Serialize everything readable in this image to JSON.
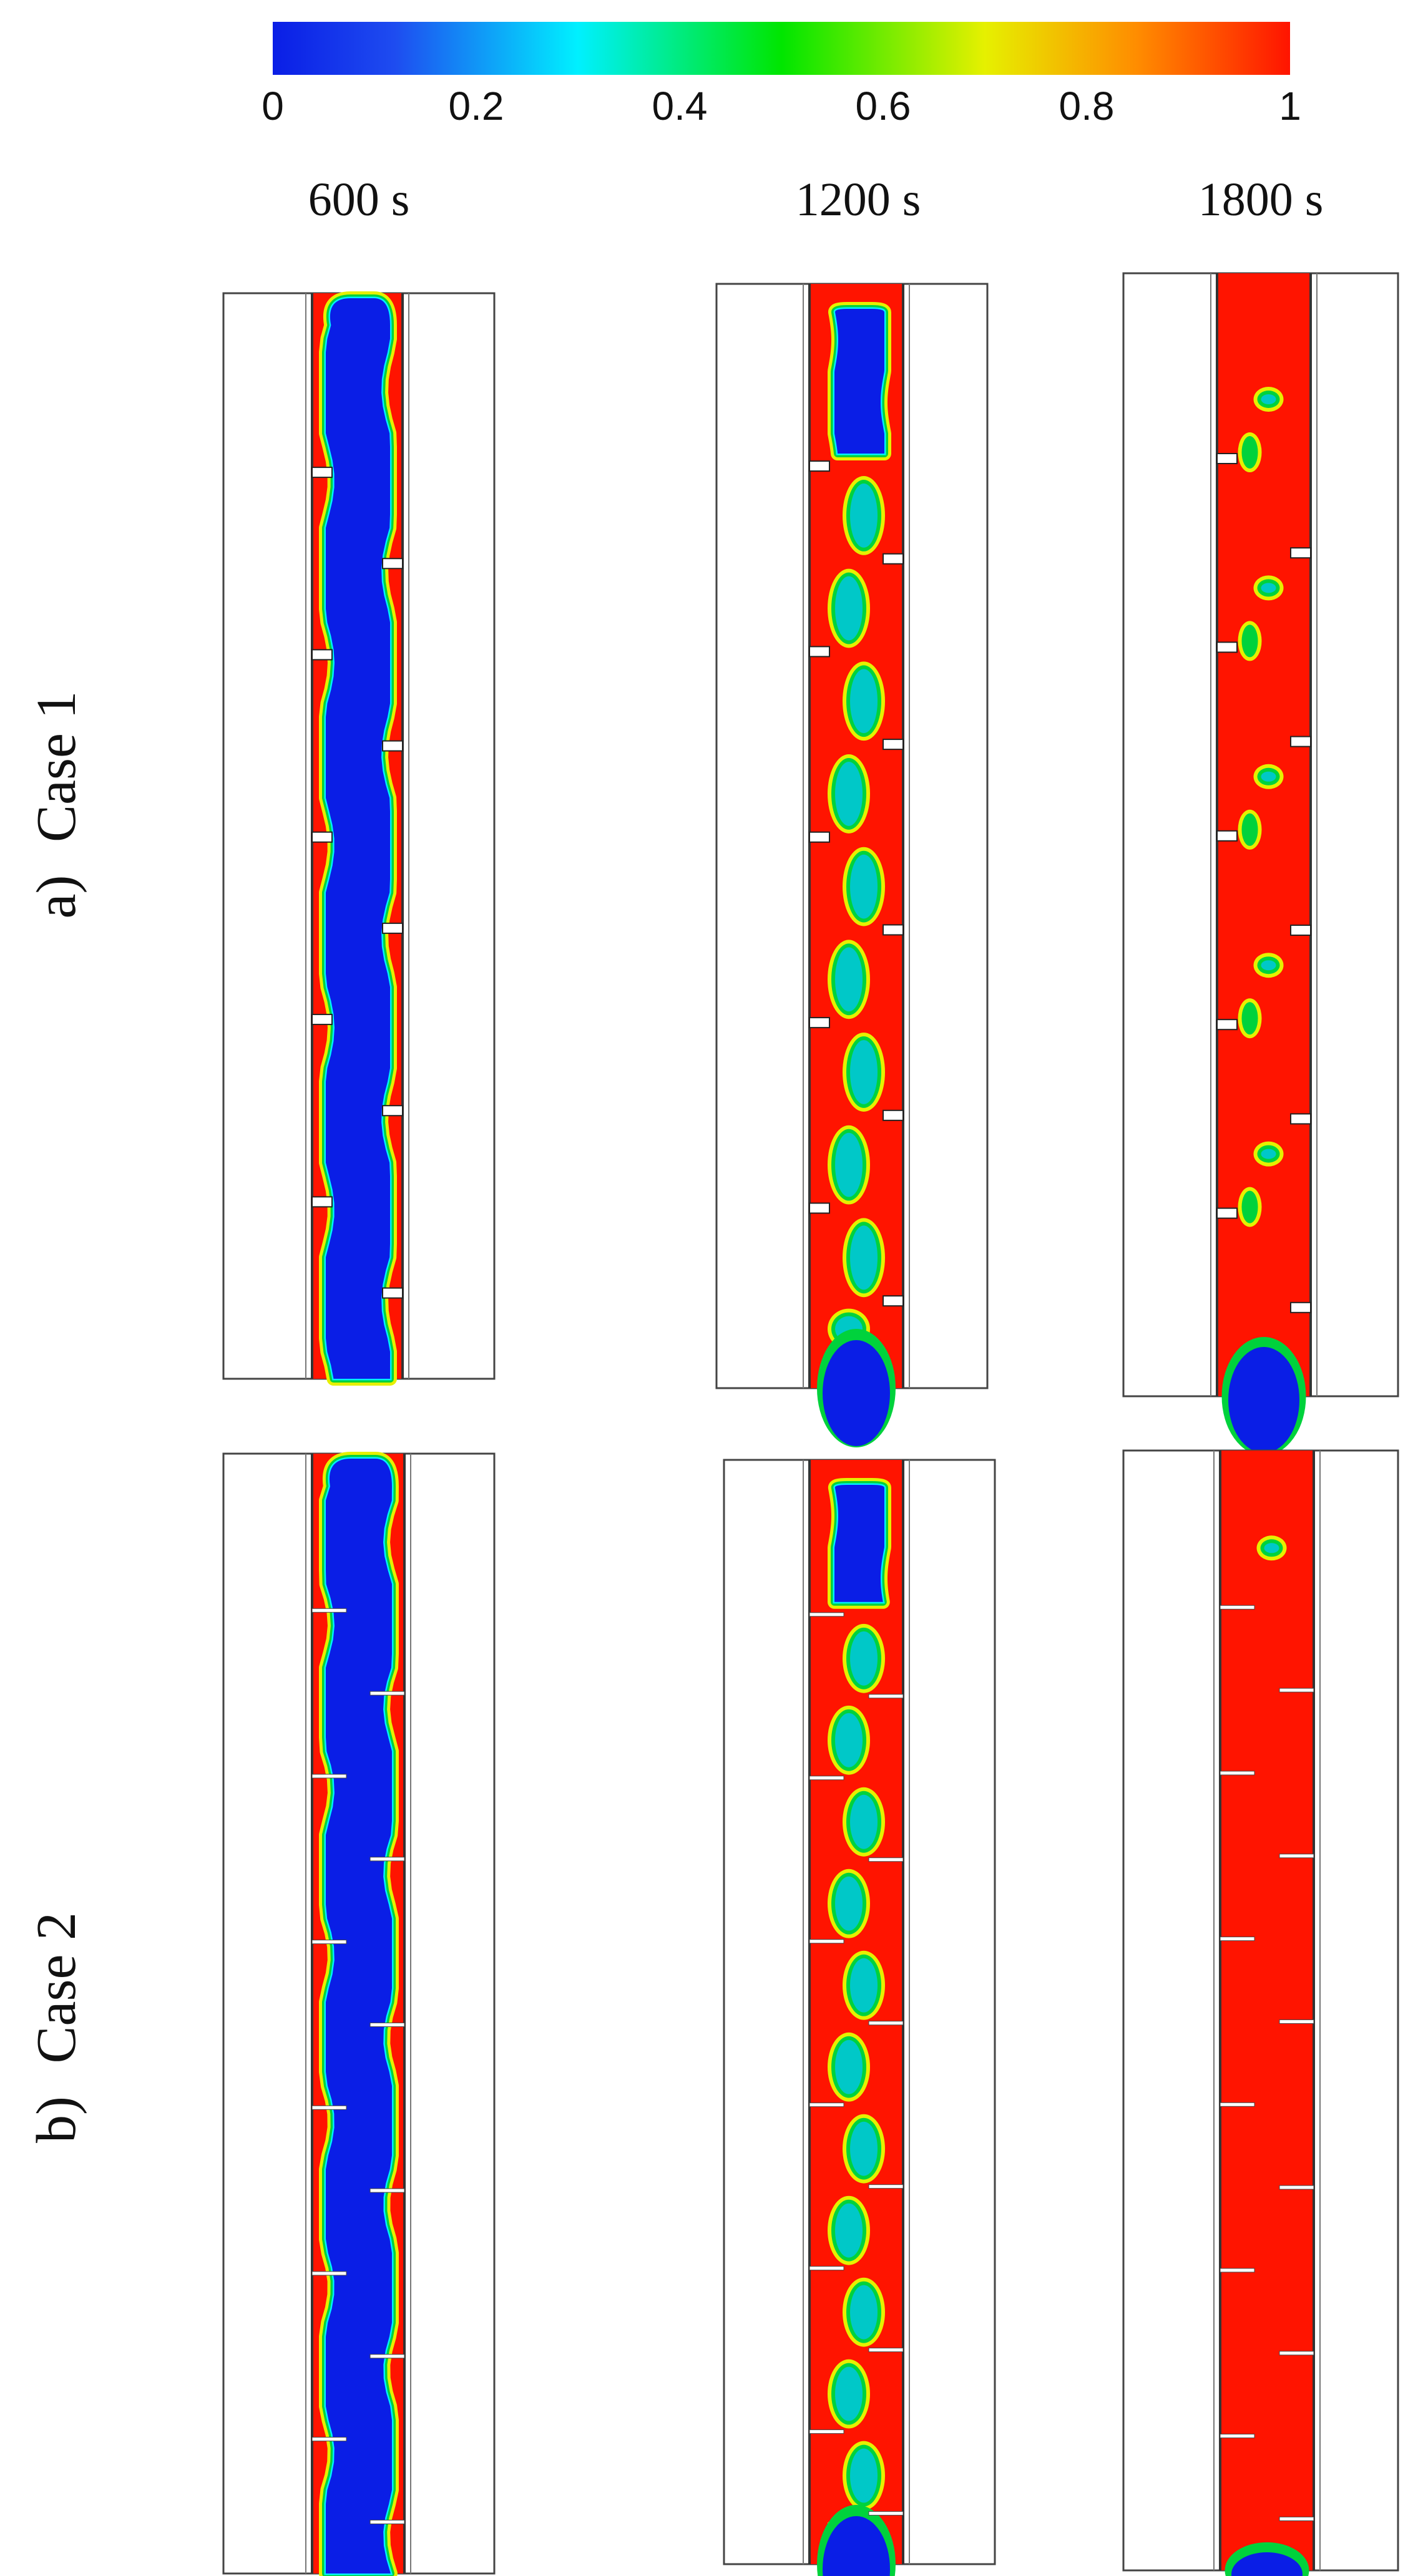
{
  "colorbar": {
    "ticks": [
      "0",
      "0.2",
      "0.4",
      "0.6",
      "0.8",
      "1"
    ],
    "min": 0,
    "max": 1,
    "colors": [
      "#0a1ee6",
      "#1e4cf0",
      "#00f0ff",
      "#00e600",
      "#e6f000",
      "#ff8c00",
      "#ff1400"
    ]
  },
  "columns": [
    {
      "label": "600 s"
    },
    {
      "label": "1200 s"
    },
    {
      "label": "1800 s"
    }
  ],
  "rows": [
    {
      "letter": "a)",
      "label": "Case 1",
      "fin_style": "short-block"
    },
    {
      "letter": "b)",
      "label": "Case 2",
      "fin_style": "thin-line"
    }
  ],
  "panels": [
    {
      "row": "Case 1",
      "time": "600 s",
      "melt_level": 0.2
    },
    {
      "row": "Case 1",
      "time": "1200 s",
      "melt_level": 0.55
    },
    {
      "row": "Case 1",
      "time": "1800 s",
      "melt_level": 0.95
    },
    {
      "row": "Case 2",
      "time": "600 s",
      "melt_level": 0.3
    },
    {
      "row": "Case 2",
      "time": "1200 s",
      "melt_level": 0.6
    },
    {
      "row": "Case 2",
      "time": "1800 s",
      "melt_level": 0.99
    }
  ],
  "fluid_colors": {
    "liquid": "#ff1400",
    "solid": "#0a1ee6",
    "interface_outer": "#00d23c",
    "interface_inner": "#e6f000"
  }
}
